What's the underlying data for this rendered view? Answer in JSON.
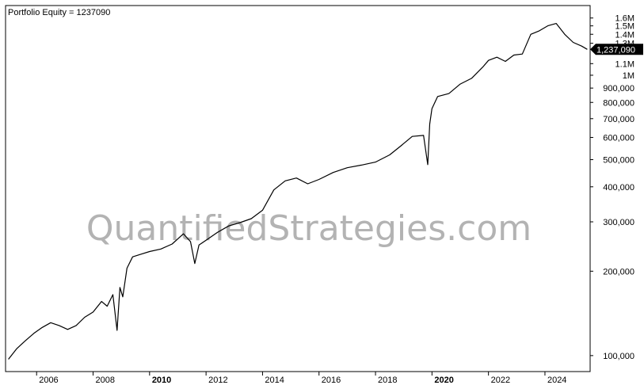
{
  "chart_data": {
    "type": "line",
    "title": "Portfolio Equity = 1237090",
    "watermark": "QuantifiedStrategies.com",
    "y_scale": "log",
    "ylim": [
      93000,
      1650000
    ],
    "xlim": [
      2004.9,
      2025.6
    ],
    "y_ticks": [
      {
        "value": 100000,
        "label": "100,000"
      },
      {
        "value": 200000,
        "label": "200,000"
      },
      {
        "value": 300000,
        "label": "300,000"
      },
      {
        "value": 400000,
        "label": "400,000"
      },
      {
        "value": 500000,
        "label": "500,000"
      },
      {
        "value": 600000,
        "label": "600,000"
      },
      {
        "value": 700000,
        "label": "700,000"
      },
      {
        "value": 800000,
        "label": "800,000"
      },
      {
        "value": 900000,
        "label": "900,000"
      },
      {
        "value": 1000000,
        "label": "1M"
      },
      {
        "value": 1100000,
        "label": "1.1M"
      },
      {
        "value": 1300000,
        "label": "1.3M"
      },
      {
        "value": 1400000,
        "label": "1.4M"
      },
      {
        "value": 1500000,
        "label": "1.5M"
      },
      {
        "value": 1600000,
        "label": "1.6M"
      }
    ],
    "x_ticks": [
      {
        "value": 2006,
        "label": "2006",
        "bold": false
      },
      {
        "value": 2008,
        "label": "2008",
        "bold": false
      },
      {
        "value": 2010,
        "label": "2010",
        "bold": true
      },
      {
        "value": 2012,
        "label": "2012",
        "bold": false
      },
      {
        "value": 2014,
        "label": "2014",
        "bold": false
      },
      {
        "value": 2016,
        "label": "2016",
        "bold": false
      },
      {
        "value": 2018,
        "label": "2018",
        "bold": false
      },
      {
        "value": 2020,
        "label": "2020",
        "bold": true
      },
      {
        "value": 2022,
        "label": "2022",
        "bold": false
      },
      {
        "value": 2024,
        "label": "2024",
        "bold": false
      }
    ],
    "last_value": {
      "value": 1237090,
      "label": "1,237,090"
    },
    "series": [
      {
        "color": "#000000",
        "x": [
          2005.0,
          2005.3,
          2005.6,
          2005.9,
          2006.2,
          2006.5,
          2006.8,
          2007.1,
          2007.4,
          2007.7,
          2008.0,
          2008.3,
          2008.5,
          2008.7,
          2008.85,
          2008.95,
          2009.05,
          2009.2,
          2009.4,
          2009.7,
          2010.0,
          2010.4,
          2010.8,
          2011.2,
          2011.45,
          2011.6,
          2011.75,
          2012.0,
          2012.4,
          2012.8,
          2013.2,
          2013.6,
          2014.0,
          2014.4,
          2014.8,
          2015.2,
          2015.6,
          2016.0,
          2016.5,
          2017.0,
          2017.5,
          2018.0,
          2018.5,
          2018.9,
          2019.3,
          2019.7,
          2019.85,
          2019.92,
          2020.0,
          2020.2,
          2020.6,
          2021.0,
          2021.4,
          2021.8,
          2022.0,
          2022.3,
          2022.6,
          2022.9,
          2023.2,
          2023.5,
          2023.8,
          2024.1,
          2024.4,
          2024.7,
          2025.0,
          2025.3,
          2025.5
        ],
        "y": [
          97000,
          106000,
          113000,
          120000,
          126000,
          131000,
          128000,
          124000,
          128000,
          137000,
          143000,
          156000,
          150000,
          165000,
          123000,
          175000,
          162000,
          205000,
          225000,
          230000,
          235000,
          240000,
          250000,
          272000,
          255000,
          213000,
          248000,
          258000,
          275000,
          290000,
          298000,
          308000,
          330000,
          390000,
          420000,
          430000,
          410000,
          425000,
          450000,
          468000,
          478000,
          490000,
          520000,
          560000,
          605000,
          610000,
          480000,
          670000,
          760000,
          840000,
          860000,
          930000,
          975000,
          1070000,
          1130000,
          1160000,
          1120000,
          1180000,
          1190000,
          1400000,
          1440000,
          1500000,
          1530000,
          1400000,
          1310000,
          1270000,
          1237090
        ]
      }
    ]
  }
}
